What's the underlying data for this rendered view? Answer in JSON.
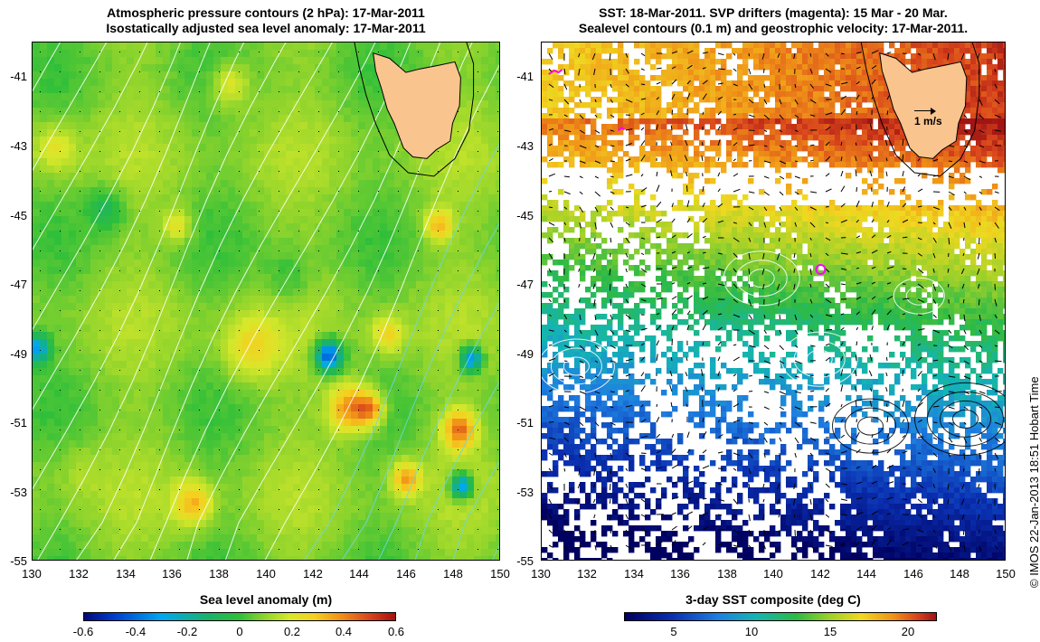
{
  "left_panel": {
    "title_line1": "Atmospheric pressure contours (2 hPa): 17-Mar-2011",
    "title_line2": "Isostatically adjusted sea level anomaly: 17-Mar-2011",
    "y_ticks": [
      "-41",
      "-43",
      "-45",
      "-47",
      "-49",
      "-51",
      "-53",
      "-55"
    ],
    "x_ticks": [
      "130",
      "132",
      "134",
      "136",
      "138",
      "140",
      "142",
      "144",
      "146",
      "148",
      "150"
    ],
    "colorbar": {
      "label": "Sea level anomaly (m)",
      "ticks": [
        "-0.6",
        "-0.4",
        "-0.2",
        "0",
        "0.2",
        "0.4",
        "0.6"
      ],
      "min": -0.6,
      "max": 0.6
    }
  },
  "right_panel": {
    "title_line1": "SST: 18-Mar-2011. SVP drifters (magenta): 15 Mar - 20 Mar.",
    "title_line2": "Sealevel contours (0.1 m) and geostrophic velocity: 17-Mar-2011.",
    "y_ticks": [
      "-41",
      "-43",
      "-45",
      "-47",
      "-49",
      "-51",
      "-53",
      "-55"
    ],
    "x_ticks": [
      "130",
      "132",
      "134",
      "136",
      "138",
      "140",
      "142",
      "144",
      "146",
      "148",
      "150"
    ],
    "velocity_scale": "1 m/s",
    "colorbar": {
      "label": "3-day SST composite (deg C)",
      "ticks": [
        "5",
        "10",
        "15",
        "20"
      ],
      "min": 2,
      "max": 22
    }
  },
  "credit": "© IMOS 22-Jan-2013 18:51 Hobart Time",
  "map_extent": {
    "lon": [
      130,
      150
    ],
    "lat": [
      -55,
      -40.3
    ]
  },
  "colors": {
    "land": "#f9c48e",
    "pressure_contour": "#ffffff",
    "cyan_contour": "#6fd7e6",
    "drifter": "#ff00ff",
    "missing_sst": "#ffffff"
  }
}
